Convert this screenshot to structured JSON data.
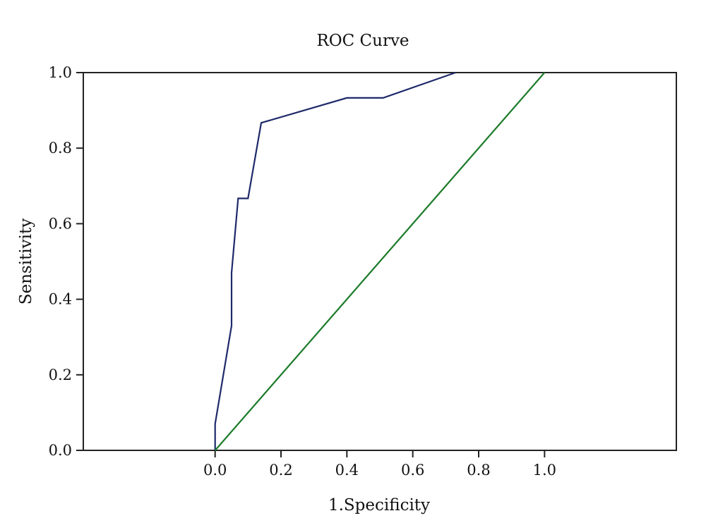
{
  "chart_data": {
    "type": "line",
    "title": "ROC Curve",
    "xlabel": "1.Specificity",
    "ylabel": "Sensitivity",
    "xlim": [
      -0.4,
      1.4
    ],
    "ylim": [
      0,
      1
    ],
    "xticks": [
      0.0,
      0.2,
      0.4,
      0.6,
      0.8,
      1.0
    ],
    "xtick_labels": [
      "0.0",
      "0.2",
      "0.4",
      "0.6",
      "0.8",
      "1.0"
    ],
    "yticks": [
      0.0,
      0.2,
      0.4,
      0.6,
      0.8,
      1.0
    ],
    "ytick_labels": [
      "0.0",
      "0.2",
      "0.4",
      "0.6",
      "0.8",
      "1.0"
    ],
    "grid": false,
    "legend": false,
    "series": [
      {
        "color": "#1f2a6b",
        "x": [
          0.0,
          0.0,
          0.05,
          0.05,
          0.07,
          0.1,
          0.1,
          0.14,
          0.4,
          0.51,
          0.73
        ],
        "y": [
          0.0,
          0.07,
          0.33,
          0.47,
          0.667,
          0.667,
          0.667,
          0.867,
          0.933,
          0.933,
          1.0
        ]
      },
      {
        "color": "#1a7a28",
        "x": [
          0.0,
          1.0
        ],
        "y": [
          0.0,
          1.0
        ]
      }
    ]
  }
}
